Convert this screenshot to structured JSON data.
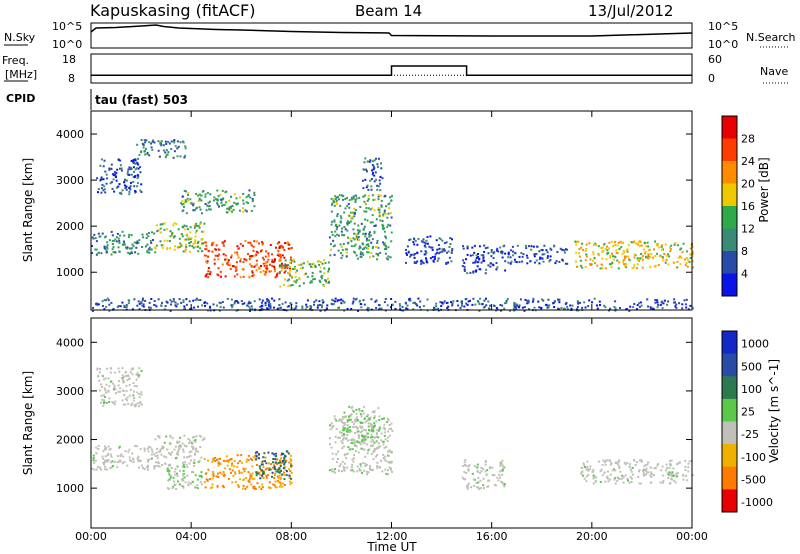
{
  "header": {
    "station": "Kapuskasing (fitACF)",
    "beam": "Beam 14",
    "date": "13/Jul/2012"
  },
  "noise_panel": {
    "left_label": "N.Sky",
    "left_ticks": [
      "10^5",
      "10^0"
    ],
    "right_label": "N.Search",
    "right_ticks": [
      "10^5",
      "10^0"
    ]
  },
  "freq_panel": {
    "left_label_line1": "Freq.",
    "left_label_line2": "[MHz]",
    "left_ticks": [
      "18",
      "8"
    ],
    "right_label": "Nave",
    "right_ticks": [
      "60",
      "0"
    ]
  },
  "cpid": {
    "label": "CPID",
    "value": "tau (fast) 503"
  },
  "x_axis": {
    "label": "Time UT",
    "ticks": [
      "00:00",
      "04:00",
      "08:00",
      "12:00",
      "16:00",
      "20:00",
      "00:00"
    ]
  },
  "power_panel": {
    "ylabel": "Slant Range [km]",
    "yticks": [
      "1000",
      "2000",
      "3000",
      "4000"
    ],
    "colorbar_label": "Power [dB]",
    "colorbar_ticks": [
      "4",
      "8",
      "12",
      "16",
      "20",
      "24",
      "28"
    ],
    "colors": [
      "#0a14e6",
      "#2a4aa8",
      "#3a8a78",
      "#2faa4a",
      "#f0c800",
      "#ff8c00",
      "#ff3c00",
      "#e60000"
    ]
  },
  "velocity_panel": {
    "ylabel": "Slant Range [km]",
    "yticks": [
      "1000",
      "2000",
      "3000",
      "4000"
    ],
    "colorbar_label": "Velocity [m s^-1]",
    "colorbar_ticks": [
      "1000",
      "500",
      "100",
      "25",
      "-25",
      "-100",
      "-500",
      "-1000"
    ],
    "colors": [
      "#1428c8",
      "#2a4aa8",
      "#2e7a50",
      "#5ac84a",
      "#c0c0b8",
      "#f0b000",
      "#ff7a00",
      "#e60000"
    ]
  },
  "chart_data": {
    "type": "heatmap",
    "x_unit": "hours UT",
    "xlim": [
      0,
      24
    ],
    "y_unit": "km",
    "ylim": [
      180,
      4500
    ],
    "noise": {
      "x": [
        0,
        0.2,
        1,
        2,
        2.6,
        2.9,
        3.5,
        4,
        5,
        6,
        8,
        10,
        11.9,
        12,
        16,
        20,
        24
      ],
      "n_sky_log10": [
        3.2,
        4.0,
        4.1,
        4.4,
        4.6,
        4.3,
        4.0,
        3.9,
        3.7,
        3.6,
        3.3,
        3.1,
        3.0,
        2.5,
        2.4,
        2.4,
        3.0
      ]
    },
    "frequency_mhz": {
      "x": [
        0,
        12,
        12,
        15,
        15,
        24
      ],
      "values": [
        10.5,
        10.5,
        14.5,
        14.5,
        10.5,
        10.5
      ]
    },
    "nave": {
      "x": [
        0,
        24
      ],
      "values": [
        15,
        15
      ]
    },
    "power_patches": [
      {
        "x": [
          0.0,
          2.5
        ],
        "y": [
          1400,
          1900
        ],
        "level_db": 10
      },
      {
        "x": [
          2.5,
          4.5
        ],
        "y": [
          1450,
          2100
        ],
        "level_db": 16
      },
      {
        "x": [
          4.5,
          8.0
        ],
        "y": [
          900,
          1700
        ],
        "level_db": 26
      },
      {
        "x": [
          7.5,
          9.5
        ],
        "y": [
          700,
          1300
        ],
        "level_db": 14
      },
      {
        "x": [
          0.2,
          2.0
        ],
        "y": [
          2700,
          3500
        ],
        "level_db": 6
      },
      {
        "x": [
          1.8,
          3.8
        ],
        "y": [
          3500,
          3900
        ],
        "level_db": 9
      },
      {
        "x": [
          3.5,
          6.5
        ],
        "y": [
          2300,
          2800
        ],
        "level_db": 12
      },
      {
        "x": [
          9.5,
          12.0
        ],
        "y": [
          1300,
          2700
        ],
        "level_db": 12
      },
      {
        "x": [
          10.8,
          11.6
        ],
        "y": [
          2800,
          3500
        ],
        "level_db": 6
      },
      {
        "x": [
          12.5,
          14.5
        ],
        "y": [
          1200,
          1800
        ],
        "level_db": 5
      },
      {
        "x": [
          14.8,
          16.5
        ],
        "y": [
          1000,
          1600
        ],
        "level_db": 5
      },
      {
        "x": [
          16.5,
          19.0
        ],
        "y": [
          1200,
          1600
        ],
        "level_db": 5
      },
      {
        "x": [
          19.3,
          24.0
        ],
        "y": [
          1100,
          1700
        ],
        "level_db": 18
      },
      {
        "x": [
          0.0,
          24.0
        ],
        "y": [
          180,
          450
        ],
        "level_db": 6
      }
    ],
    "velocity_patches": [
      {
        "x": [
          0.0,
          2.5
        ],
        "y": [
          1400,
          1900
        ],
        "v_ms": 0
      },
      {
        "x": [
          2.5,
          4.5
        ],
        "y": [
          1450,
          2100
        ],
        "v_ms": 0
      },
      {
        "x": [
          4.5,
          8.0
        ],
        "y": [
          1000,
          1700
        ],
        "v_ms": -300
      },
      {
        "x": [
          6.5,
          8.0
        ],
        "y": [
          1200,
          1800
        ],
        "v_ms": 300
      },
      {
        "x": [
          3.0,
          4.5
        ],
        "y": [
          1000,
          1500
        ],
        "v_ms": 80
      },
      {
        "x": [
          9.5,
          12.0
        ],
        "y": [
          1300,
          2500
        ],
        "v_ms": 0
      },
      {
        "x": [
          10.0,
          11.5
        ],
        "y": [
          1800,
          2700
        ],
        "v_ms": 60
      },
      {
        "x": [
          0.2,
          2.0
        ],
        "y": [
          2700,
          3500
        ],
        "v_ms": 0
      },
      {
        "x": [
          19.5,
          24.0
        ],
        "y": [
          1100,
          1600
        ],
        "v_ms": 0
      },
      {
        "x": [
          14.8,
          16.5
        ],
        "y": [
          1000,
          1600
        ],
        "v_ms": 0
      }
    ]
  }
}
